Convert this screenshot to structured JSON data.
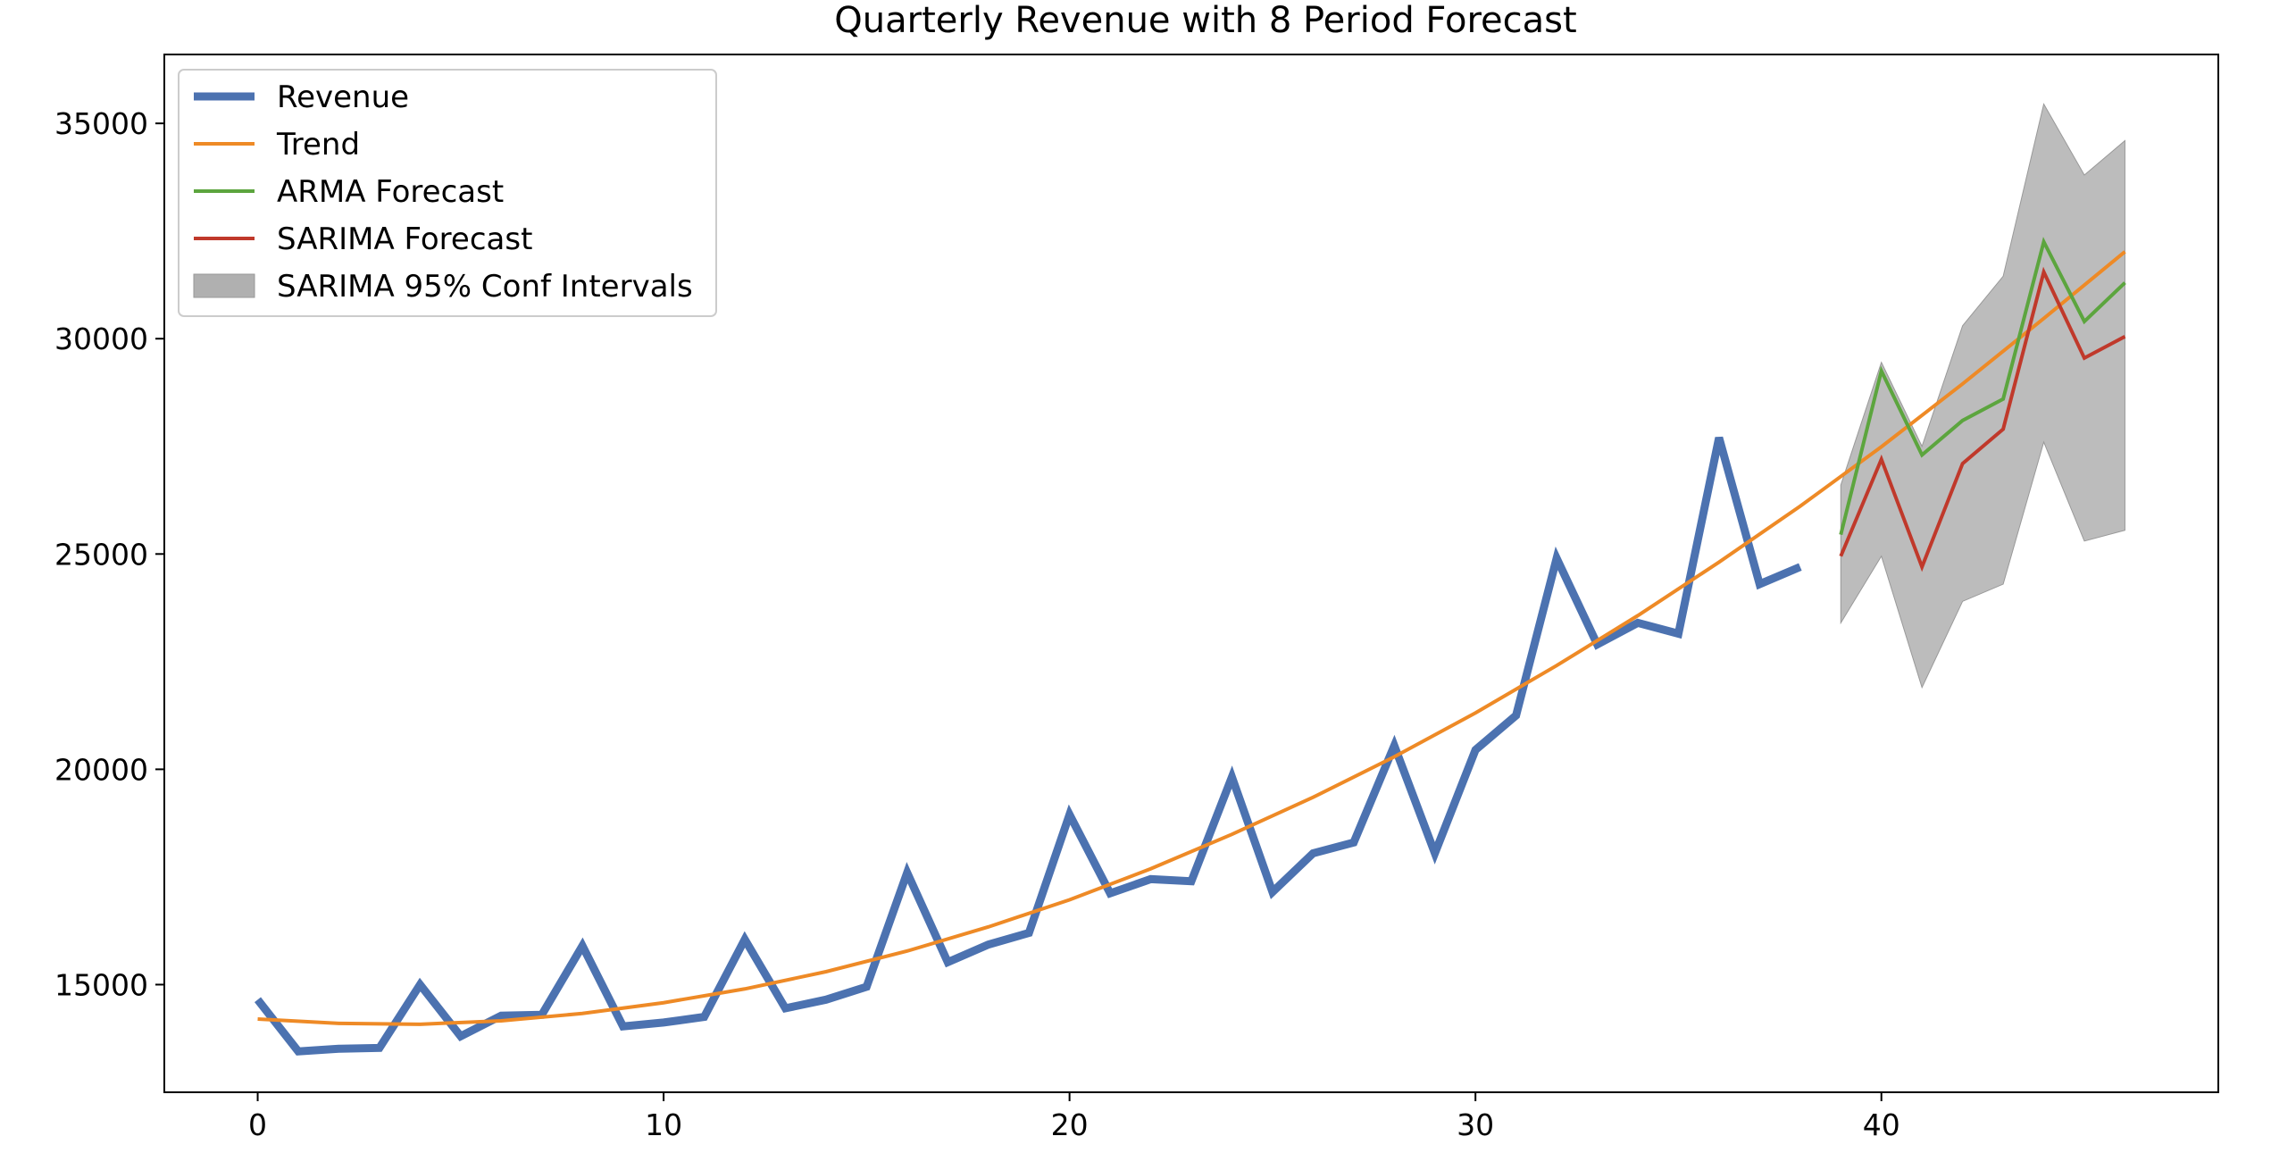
{
  "chart_data": {
    "type": "line",
    "title": "Quarterly Revenue with 8 Period Forecast",
    "xlabel": "",
    "ylabel": "",
    "xlim": [
      -2.3,
      48.3
    ],
    "ylim": [
      12500,
      36600
    ],
    "x_ticks": [
      0,
      10,
      20,
      30,
      40
    ],
    "y_ticks": [
      15000,
      20000,
      25000,
      30000,
      35000
    ],
    "grid": false,
    "legend_placement": "top-left",
    "series": [
      {
        "name": "Revenue",
        "color": "#4c72b0",
        "style": "thick-line",
        "x": [
          0,
          1,
          2,
          3,
          4,
          5,
          6,
          7,
          8,
          9,
          10,
          11,
          12,
          13,
          14,
          15,
          16,
          17,
          18,
          19,
          20,
          21,
          22,
          23,
          24,
          25,
          26,
          27,
          28,
          29,
          30,
          31,
          32,
          33,
          34,
          35,
          36,
          37,
          38
        ],
        "values": [
          14650,
          13450,
          13510,
          13530,
          15000,
          13800,
          14280,
          14300,
          15900,
          14030,
          14120,
          14250,
          16050,
          14450,
          14650,
          14950,
          17600,
          15520,
          15930,
          16200,
          18950,
          17120,
          17450,
          17400,
          19820,
          17150,
          18050,
          18300,
          20550,
          18050,
          20450,
          21250,
          24900,
          22900,
          23400,
          23150,
          27700,
          24300,
          24700
        ]
      },
      {
        "name": "Trend",
        "color": "#ee8a26",
        "style": "line",
        "x": [
          0,
          2,
          4,
          6,
          8,
          10,
          12,
          14,
          16,
          18,
          20,
          22,
          24,
          26,
          28,
          30,
          32,
          34,
          36,
          38,
          40,
          42,
          44,
          46
        ],
        "values": [
          14200,
          14100,
          14080,
          14160,
          14330,
          14580,
          14900,
          15300,
          15780,
          16340,
          16970,
          17690,
          18490,
          19350,
          20290,
          21310,
          22410,
          23570,
          24810,
          26110,
          27490,
          28950,
          30470,
          32020
        ]
      },
      {
        "name": "ARMA Forecast",
        "color": "#5ca53e",
        "style": "line",
        "x": [
          39,
          40,
          41,
          42,
          43,
          44,
          45,
          46
        ],
        "values": [
          25450,
          29250,
          27300,
          28100,
          28600,
          32250,
          30400,
          31300
        ]
      },
      {
        "name": "SARIMA Forecast",
        "color": "#c0392b",
        "style": "line",
        "x": [
          39,
          40,
          41,
          42,
          43,
          44,
          45,
          46
        ],
        "values": [
          24950,
          27200,
          24700,
          27100,
          27900,
          31550,
          29550,
          30050
        ]
      }
    ],
    "confidence_band": {
      "name": "SARIMA 95% Conf Intervals",
      "color": "#b0b0b0",
      "x": [
        39,
        40,
        41,
        42,
        43,
        44,
        45,
        46
      ],
      "lower": [
        23400,
        24950,
        21900,
        23900,
        24300,
        27600,
        25300,
        25550
      ],
      "upper": [
        26600,
        29450,
        27500,
        30300,
        31450,
        35450,
        33800,
        34600
      ]
    }
  }
}
